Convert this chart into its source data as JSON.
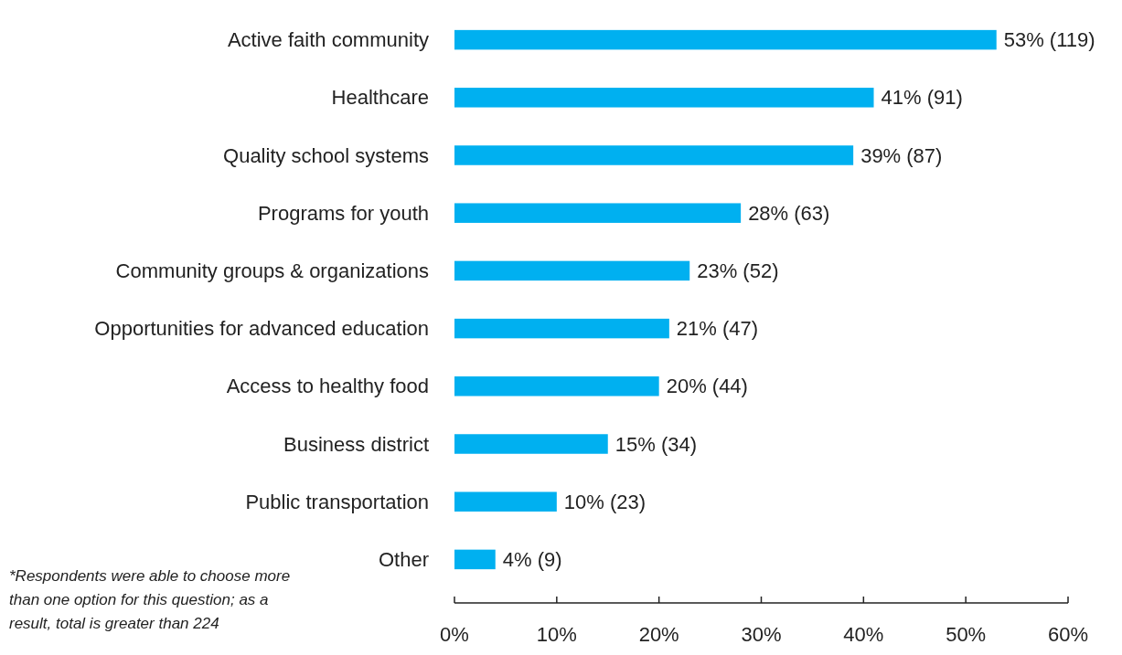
{
  "chart_data": {
    "type": "bar",
    "orientation": "horizontal",
    "categories": [
      "Active faith community",
      "Healthcare",
      "Quality school systems",
      "Programs for youth",
      "Community groups & organizations",
      "Opportunities for advanced education",
      "Access to healthy food",
      "Business district",
      "Public transportation",
      "Other"
    ],
    "values": [
      53,
      41,
      39,
      28,
      23,
      21,
      20,
      15,
      10,
      4
    ],
    "value_labels": [
      "53% (119)",
      "41% (91)",
      "39% (87)",
      "28% (63)",
      "23% (52)",
      "21% (47)",
      "20% (44)",
      "15% (34)",
      "10% (23)",
      "4% (9)"
    ],
    "color": "#00b0f0",
    "xlim": [
      0,
      60
    ],
    "xticks": [
      {
        "value": 0,
        "label": "0%"
      },
      {
        "value": 10,
        "label": "10%"
      },
      {
        "value": 20,
        "label": "20%"
      },
      {
        "value": 30,
        "label": "30%"
      },
      {
        "value": 40,
        "label": "40%"
      },
      {
        "value": 50,
        "label": "50%"
      },
      {
        "value": 60,
        "label": "60%"
      }
    ],
    "grid": false,
    "annotations": [
      "*Respondents were able to choose more than one option for this question; as a result, total is greater than 224"
    ]
  }
}
